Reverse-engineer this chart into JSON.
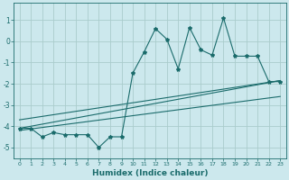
{
  "xlabel": "Humidex (Indice chaleur)",
  "xlim": [
    -0.5,
    23.5
  ],
  "ylim": [
    -5.5,
    1.8
  ],
  "yticks": [
    1,
    0,
    -1,
    -2,
    -3,
    -4,
    -5
  ],
  "xticks": [
    0,
    1,
    2,
    3,
    4,
    5,
    6,
    7,
    8,
    9,
    10,
    11,
    12,
    13,
    14,
    15,
    16,
    17,
    18,
    19,
    20,
    21,
    22,
    23
  ],
  "bg_color": "#cce8ed",
  "grid_color": "#aacccc",
  "line_color": "#1a6b6b",
  "main_series_x": [
    0,
    1,
    2,
    3,
    4,
    5,
    6,
    7,
    8,
    9,
    10,
    11,
    12,
    13,
    14,
    15,
    16,
    17,
    18,
    19,
    20,
    21,
    22,
    23
  ],
  "main_series_y": [
    -4.1,
    -4.1,
    -4.5,
    -4.3,
    -4.4,
    -4.4,
    -4.4,
    -5.0,
    -4.5,
    -4.5,
    -1.5,
    -0.5,
    0.6,
    0.1,
    -1.3,
    0.65,
    -0.4,
    -0.65,
    1.1,
    -0.7,
    -0.7,
    -0.7,
    -1.9,
    -1.9
  ],
  "line1_x": [
    0,
    23
  ],
  "line1_y": [
    -4.1,
    -1.85
  ],
  "line2_x": [
    0,
    23
  ],
  "line2_y": [
    -4.2,
    -2.6
  ],
  "line3_x": [
    0,
    23
  ],
  "line3_y": [
    -3.7,
    -1.85
  ]
}
